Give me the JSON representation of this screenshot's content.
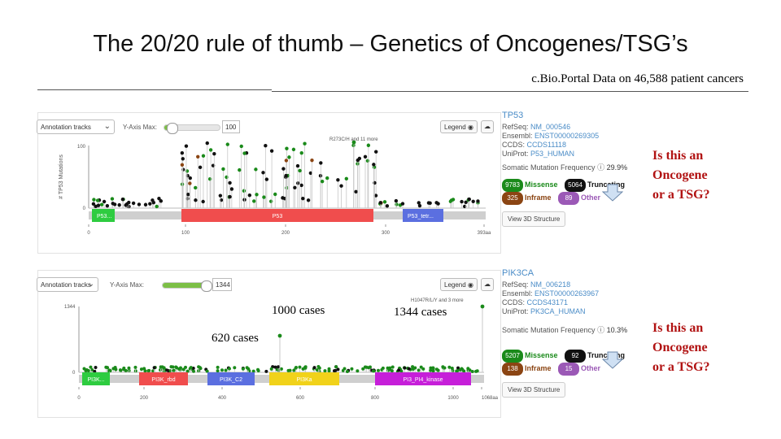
{
  "title": "The 20/20 rule of thumb – Genetics of Oncogenes/TSG’s",
  "subtitle": "c.Bio.Portal Data on 46,588 patient cancers",
  "colors": {
    "missense": "#1a8a1a",
    "truncating": "#111111",
    "inframe": "#8b4513",
    "other": "#9b59b6",
    "domain_red": "#f04d4d",
    "domain_green": "#2ecc40",
    "domain_blue": "#5b6fe0",
    "domain_yellow": "#f1d21a",
    "domain_magenta": "#c61fd9"
  },
  "tp53": {
    "toolbar": {
      "tracks_label": "Annotation tracks",
      "yaxis_label": "Y-Axis Max:",
      "yaxis_value": "100",
      "legend_label": "Legend"
    },
    "y_axis_title": "# TP53 Mutations",
    "y_max_label": "100",
    "y_zero_label": "0",
    "hotspot_label": "R273C/H and 11 more",
    "domains": [
      {
        "label": "P53..."
      },
      {
        "label": "P53"
      },
      {
        "label": "P53_tetr..."
      }
    ],
    "x_ticks": [
      "0",
      "100",
      "200",
      "300",
      "393aa"
    ],
    "info": {
      "gene": "TP53",
      "refseq_label": "RefSeq:",
      "refseq": "NM_000546",
      "ensembl_label": "Ensembl:",
      "ensembl": "ENST00000269305",
      "ccds_label": "CCDS:",
      "ccds": "CCDS11118",
      "uniprot_label": "UniProt:",
      "uniprot": "P53_HUMAN",
      "freq_label": "Somatic Mutation Frequency",
      "freq_value": "29.9%",
      "missense_count": "9783",
      "missense_label": "Missense",
      "truncating_count": "5064",
      "truncating_label": "Truncating",
      "inframe_count": "325",
      "inframe_label": "Inframe",
      "other_count": "89",
      "other_label": "Other",
      "view3d": "View 3D Structure"
    },
    "question": [
      "Is this an",
      "Oncogene",
      "or a TSG?"
    ]
  },
  "pik3ca": {
    "toolbar": {
      "tracks_label": "Annotation tracks",
      "yaxis_label": "Y-Axis Max:",
      "yaxis_value": "1344",
      "legend_label": "Legend"
    },
    "y_max_label": "1344",
    "y_zero_label": "0",
    "hotspot_label": "H1047R/L/Y and 3 more",
    "domains": [
      {
        "label": "PI3K..."
      },
      {
        "label": "PI3K_rbd"
      },
      {
        "label": "PI3K_C2"
      },
      {
        "label": "PI3Ka"
      },
      {
        "label": "PI3_PI4_kinase"
      }
    ],
    "x_ticks": [
      "0",
      "200",
      "400",
      "600",
      "800",
      "1000",
      "1068aa"
    ],
    "annotations": {
      "a1000": "1000 cases",
      "a1344": "1344 cases",
      "a620": "620 cases"
    },
    "info": {
      "gene": "PIK3CA",
      "refseq_label": "RefSeq:",
      "refseq": "NM_006218",
      "ensembl_label": "Ensembl:",
      "ensembl": "ENST00000263967",
      "ccds_label": "CCDS:",
      "ccds": "CCDS43171",
      "uniprot_label": "UniProt:",
      "uniprot": "PK3CA_HUMAN",
      "freq_label": "Somatic Mutation Frequency",
      "freq_value": "10.3%",
      "missense_count": "5207",
      "missense_label": "Missense",
      "truncating_count": "92",
      "truncating_label": "Truncating",
      "inframe_count": "138",
      "inframe_label": "Inframe",
      "other_count": "15",
      "other_label": "Other",
      "view3d": "View 3D Structure"
    },
    "question": [
      "Is this an",
      "Oncogene",
      "or a TSG?"
    ]
  }
}
